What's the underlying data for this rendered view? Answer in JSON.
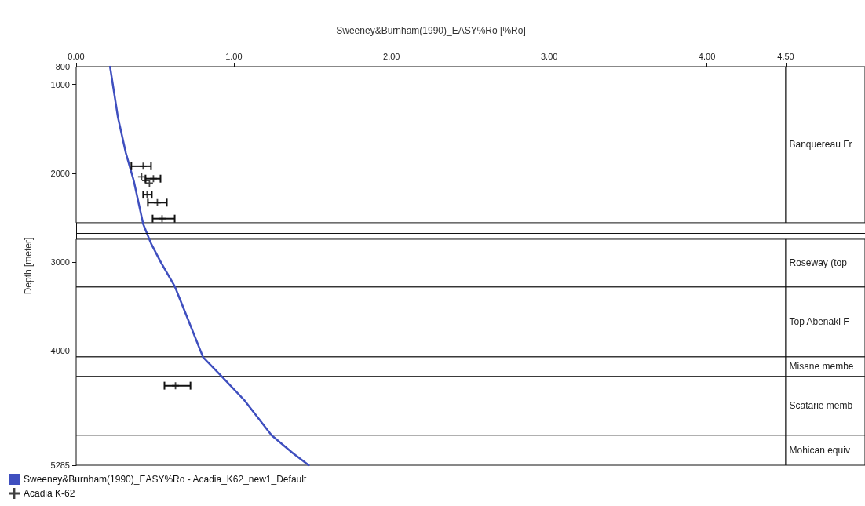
{
  "chart_data": {
    "type": "line",
    "xlabel": "Sweeney&Burnham(1990)_EASY%Ro [%Ro]",
    "ylabel": "Depth [meter]",
    "xlim": [
      0,
      4.5
    ],
    "xticks": [
      {
        "value": 0,
        "label": "0.00"
      },
      {
        "value": 1,
        "label": "1.00"
      },
      {
        "value": 2,
        "label": "2.00"
      },
      {
        "value": 3,
        "label": "3.00"
      },
      {
        "value": 4,
        "label": "4.00"
      },
      {
        "value": 4.5,
        "label": "4.50"
      }
    ],
    "ylim": [
      5285,
      800
    ],
    "yticks": [
      800,
      1000,
      2000,
      3000,
      4000,
      5285
    ],
    "grid": false,
    "legend": "bottom left",
    "line_style": "solid",
    "series": [
      {
        "name": "Sweeney&Burnham(1990)_EASY%Ro - Acadia_K62_new1_Default",
        "color": "#3f4fbf",
        "x": [
          0.215,
          0.265,
          0.315,
          0.365,
          0.425,
          0.475,
          0.54,
          0.625,
          0.715,
          0.805,
          0.915,
          1.065,
          1.24,
          1.375,
          1.475
        ],
        "values": [
          800,
          1370,
          1770,
          2080,
          2570,
          2790,
          3010,
          3270,
          3670,
          4070,
          4270,
          4550,
          4950,
          5150,
          5285
        ]
      },
      {
        "name": "Acadia K-62",
        "type": "scatter",
        "marker": "cross",
        "color": "#111111",
        "x": [
          0.425,
          0.415,
          0.44,
          0.465,
          0.49,
          0.45,
          0.515,
          0.545,
          0.63
        ],
        "values": [
          1920,
          2040,
          2080,
          2110,
          2060,
          2240,
          2330,
          2510,
          4390
        ],
        "xerrors": [
          [
            0.35,
            0.475
          ],
          null,
          null,
          null,
          [
            0.44,
            0.535
          ],
          [
            0.425,
            0.48
          ],
          [
            0.455,
            0.575
          ],
          [
            0.485,
            0.625
          ],
          [
            0.56,
            0.725
          ]
        ]
      }
    ],
    "ref_lines": [
      {
        "axis": "y",
        "value": 2609,
        "color": "#111111"
      },
      {
        "axis": "y",
        "value": 2671,
        "color": "#111111"
      }
    ],
    "bands": [
      {
        "axis": "y",
        "from": 800,
        "to": 2556,
        "label": "Banquereau Fr",
        "color": "#ffffff"
      },
      {
        "axis": "y",
        "from": 2742,
        "to": 3280,
        "label": "Roseway (top",
        "color": "#ffffff"
      },
      {
        "axis": "y",
        "from": 3280,
        "to": 4066,
        "label": "Top Abenaki F",
        "color": "#ffffff"
      },
      {
        "axis": "y",
        "from": 4066,
        "to": 4286,
        "label": "Misane membe",
        "color": "#ffffff"
      },
      {
        "axis": "y",
        "from": 4286,
        "to": 4948,
        "label": "Scatarie memb",
        "color": "#ffffff"
      },
      {
        "axis": "y",
        "from": 4948,
        "to": 5285,
        "label": "Mohican equiv",
        "color": "#ffffff"
      }
    ]
  }
}
